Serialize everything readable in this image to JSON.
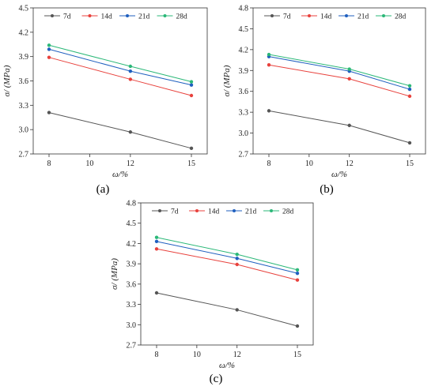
{
  "series_colors": [
    "#555555",
    "#e8413c",
    "#1f5fbf",
    "#2bb878"
  ],
  "chart_data": [
    {
      "type": "line",
      "panel_label": "(a)",
      "xlabel": "ω/%",
      "ylabel": "σ/ (MPa)",
      "x": [
        8,
        12,
        15
      ],
      "xticks": [
        8,
        10,
        12,
        15
      ],
      "ylim": [
        2.7,
        4.5
      ],
      "yticks": [
        "2.7",
        "3.0",
        "3.3",
        "3.6",
        "3.9",
        "4.2",
        "4.5"
      ],
      "legend": "top",
      "series": [
        {
          "name": "7d",
          "values": [
            3.21,
            2.97,
            2.77
          ]
        },
        {
          "name": "14d",
          "values": [
            3.89,
            3.62,
            3.42
          ]
        },
        {
          "name": "21d",
          "values": [
            3.99,
            3.72,
            3.55
          ]
        },
        {
          "name": "28d",
          "values": [
            4.04,
            3.78,
            3.59
          ]
        }
      ]
    },
    {
      "type": "line",
      "panel_label": "(b)",
      "xlabel": "ω/%",
      "ylabel": "σ/ (MPa)",
      "x": [
        8,
        12,
        15
      ],
      "xticks": [
        8,
        10,
        12,
        15
      ],
      "ylim": [
        2.7,
        4.8
      ],
      "yticks": [
        "2.7",
        "3.0",
        "3.3",
        "3.6",
        "3.9",
        "4.2",
        "4.5",
        "4.8"
      ],
      "legend": "top",
      "series": [
        {
          "name": "7d",
          "values": [
            3.32,
            3.11,
            2.86
          ]
        },
        {
          "name": "14d",
          "values": [
            3.98,
            3.78,
            3.53
          ]
        },
        {
          "name": "21d",
          "values": [
            4.1,
            3.89,
            3.63
          ]
        },
        {
          "name": "28d",
          "values": [
            4.13,
            3.92,
            3.68
          ]
        }
      ]
    },
    {
      "type": "line",
      "panel_label": "(c)",
      "xlabel": "ω/%",
      "ylabel": "σ/ (MPa)",
      "x": [
        8,
        12,
        15
      ],
      "xticks": [
        8,
        10,
        12,
        15
      ],
      "ylim": [
        2.7,
        4.8
      ],
      "yticks": [
        "2.7",
        "3.0",
        "3.3",
        "3.6",
        "3.9",
        "4.2",
        "4.5",
        "4.8"
      ],
      "legend": "top",
      "series": [
        {
          "name": "7d",
          "values": [
            3.47,
            3.22,
            2.98
          ]
        },
        {
          "name": "14d",
          "values": [
            4.12,
            3.89,
            3.66
          ]
        },
        {
          "name": "21d",
          "values": [
            4.23,
            3.98,
            3.76
          ]
        },
        {
          "name": "28d",
          "values": [
            4.29,
            4.04,
            3.81
          ]
        }
      ]
    }
  ]
}
